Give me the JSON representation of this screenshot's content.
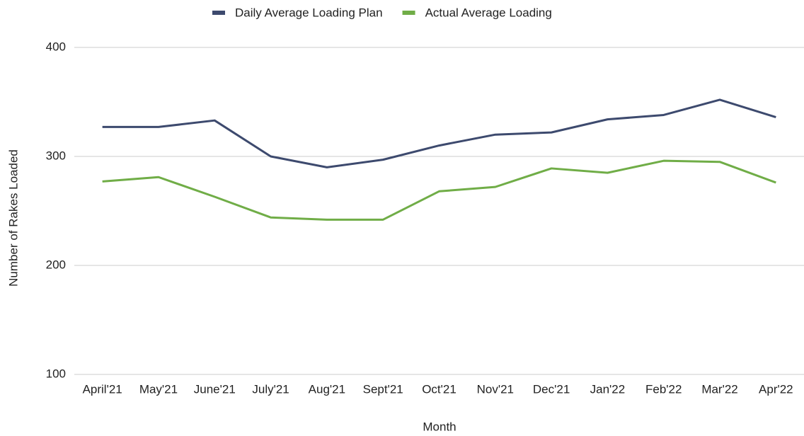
{
  "chart_data": {
    "type": "line",
    "x_label": "Month",
    "y_label": "Number of Rakes Loaded",
    "categories": [
      "April'21",
      "May'21",
      "June'21",
      "July'21",
      "Aug'21",
      "Sept'21",
      "Oct'21",
      "Nov'21",
      "Dec'21",
      "Jan'22",
      "Feb'22",
      "Mar'22",
      "Apr'22"
    ],
    "series": [
      {
        "name": "Daily Average Loading Plan",
        "color": "#3d4a6e",
        "values": [
          327,
          327,
          333,
          300,
          290,
          297,
          310,
          320,
          322,
          334,
          338,
          352,
          336
        ]
      },
      {
        "name": "Actual Average Loading",
        "color": "#70ad47",
        "values": [
          277,
          281,
          263,
          244,
          242,
          242,
          268,
          272,
          289,
          285,
          296,
          295,
          276
        ]
      }
    ],
    "ylim": [
      100,
      400
    ],
    "yticks": [
      100,
      200,
      300,
      400
    ],
    "grid": true,
    "legend": "top"
  }
}
